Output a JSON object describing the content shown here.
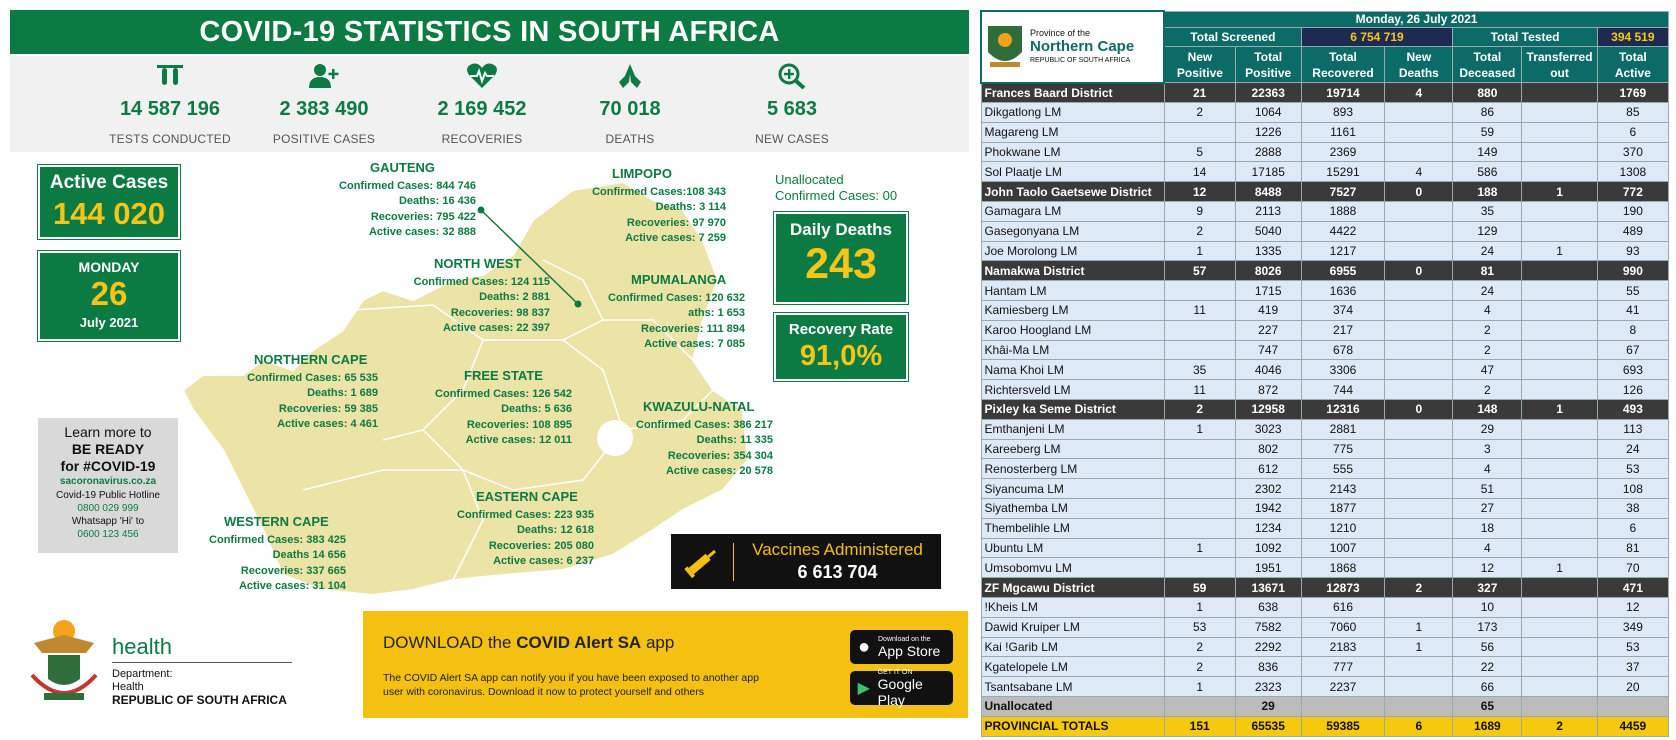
{
  "left": {
    "title": "COVID-19 STATISTICS IN SOUTH AFRICA",
    "stats": [
      {
        "icon": "test-tubes-icon",
        "value": "14 587 196",
        "label": "TESTS CONDUCTED"
      },
      {
        "icon": "add-user-icon",
        "value": "2 383 490",
        "label": "POSITIVE CASES"
      },
      {
        "icon": "heartbeat-icon",
        "value": "2 169 452",
        "label": "RECOVERIES"
      },
      {
        "icon": "praying-hands-icon",
        "value": "70 018",
        "label": "DEATHS"
      },
      {
        "icon": "magnify-plus-icon",
        "value": "5 683",
        "label": "NEW CASES"
      }
    ],
    "active_cases": {
      "label": "Active Cases",
      "value": "144 020"
    },
    "date": {
      "day": "MONDAY",
      "num": "26",
      "month": "July 2021"
    },
    "unallocated": {
      "line1": "Unallocated",
      "line2": "Confirmed Cases: 00"
    },
    "daily_deaths": {
      "label": "Daily Deaths",
      "value": "243"
    },
    "recovery_rate": {
      "label": "Recovery Rate",
      "value": "91,0%"
    },
    "provinces": {
      "gauteng": {
        "name": "GAUTENG",
        "lines": [
          "Confirmed Cases: 844 746",
          "Deaths: 16 436",
          "Recoveries: 795 422",
          "Active cases: 32 888"
        ]
      },
      "limpopo": {
        "name": "LIMPOPO",
        "lines": [
          "Confirmed Cases:108 343",
          "Deaths: 3 114",
          "Recoveries: 97 970",
          "Active cases: 7 259"
        ]
      },
      "northwest": {
        "name": "NORTH WEST",
        "lines": [
          "Confirmed Cases: 124 115",
          "Deaths: 2 881",
          "Recoveries: 98 837",
          "Active cases: 22 397"
        ]
      },
      "mpumalanga": {
        "name": "MPUMALANGA",
        "lines": [
          "Confirmed Cases: 120 632",
          "aths:  1 653",
          "Recoveries: 111 894",
          "Active cases: 7 085"
        ]
      },
      "northerncape": {
        "name": "NORTHERN CAPE",
        "lines": [
          "Confirmed Cases: 65 535",
          "Deaths: 1 689",
          "Recoveries: 59 385",
          "Active cases: 4 461"
        ]
      },
      "freestate": {
        "name": "FREE STATE",
        "lines": [
          "Confirmed Cases: 126 542",
          "Deaths: 5 636",
          "Recoveries:  108 895",
          "Active cases: 12 011"
        ]
      },
      "kzn": {
        "name": "KWAZULU-NATAL",
        "lines": [
          "Confirmed Cases: 386 217",
          "Deaths: 11 335",
          "Recoveries: 354 304",
          "Active cases: 20 578"
        ]
      },
      "westerncape": {
        "name": "WESTERN CAPE",
        "lines": [
          "Confirmed Cases: 383 425",
          "Deaths 14 656",
          "Recoveries: 337 665",
          "Active cases: 31 104"
        ]
      },
      "easterncape": {
        "name": "EASTERN CAPE",
        "lines": [
          "Confirmed Cases: 223 935",
          "Deaths: 12 618",
          "Recoveries: 205 080",
          "Active cases: 6 237"
        ]
      }
    },
    "learn": {
      "l1": "Learn more to",
      "l2": "BE READY",
      "l3": "for #COVID-19",
      "site": "sacoronavirus.co.za",
      "hotline": "Covid-19 Public Hotline",
      "hotline_num": "0800 029 999",
      "whatsapp": "Whatsapp 'Hi' to",
      "whatsapp_num": "0600 123 456"
    },
    "vaccines": {
      "label": "Vaccines Administered",
      "value": "6 613 704"
    },
    "health": {
      "brand": "health",
      "l1": "Department:",
      "l2": "Health",
      "l3": "REPUBLIC OF SOUTH AFRICA"
    },
    "alert": {
      "prefix": "DOWNLOAD the ",
      "bold": "COVID Alert SA",
      "suffix": " app",
      "body1": "The COVID Alert SA app can notify you if you have been exposed to another app",
      "body2": "user with coronavirus. Download it now to protect yourself and others",
      "appstore_small": "Download on the",
      "appstore": "App Store",
      "google_small": "GET IT ON",
      "google": "Google Play"
    }
  },
  "right": {
    "logo": {
      "l1": "Province of the",
      "l2": "Northern Cape",
      "l3": "REPUBLIC OF SOUTH AFRICA"
    },
    "date": "Monday, 26 July 2021",
    "screened_label": "Total Screened",
    "screened_value": "6 754 719",
    "tested_label": "Total Tested",
    "tested_value": "394 519",
    "headers": [
      [
        "New",
        "Positive"
      ],
      [
        "Total",
        "Positive"
      ],
      [
        "Total",
        "Recovered"
      ],
      [
        "New",
        "Deaths"
      ],
      [
        "Total",
        "Deceased"
      ],
      [
        "Transferred",
        "out"
      ],
      [
        "Total",
        "Active"
      ]
    ],
    "rows": [
      {
        "t": "dist",
        "c": [
          "Frances Baard District",
          "21",
          "22363",
          "19714",
          "4",
          "880",
          "",
          "1769"
        ]
      },
      {
        "t": "lm",
        "c": [
          "Dikgatlong LM",
          "2",
          "1064",
          "893",
          "",
          "86",
          "",
          "85"
        ]
      },
      {
        "t": "lm",
        "c": [
          "Magareng LM",
          "",
          "1226",
          "1161",
          "",
          "59",
          "",
          "6"
        ]
      },
      {
        "t": "lm",
        "c": [
          "Phokwane LM",
          "5",
          "2888",
          "2369",
          "",
          "149",
          "",
          "370"
        ]
      },
      {
        "t": "lm",
        "c": [
          "Sol Plaatje LM",
          "14",
          "17185",
          "15291",
          "4",
          "586",
          "",
          "1308"
        ]
      },
      {
        "t": "dist",
        "c": [
          "John Taolo Gaetsewe District",
          "12",
          "8488",
          "7527",
          "0",
          "188",
          "1",
          "772"
        ]
      },
      {
        "t": "lm",
        "c": [
          "Gamagara LM",
          "9",
          "2113",
          "1888",
          "",
          "35",
          "",
          "190"
        ]
      },
      {
        "t": "lm",
        "c": [
          "Gasegonyana LM",
          "2",
          "5040",
          "4422",
          "",
          "129",
          "",
          "489"
        ]
      },
      {
        "t": "lm",
        "c": [
          "Joe Morolong LM",
          "1",
          "1335",
          "1217",
          "",
          "24",
          "1",
          "93"
        ]
      },
      {
        "t": "dist",
        "c": [
          "Namakwa District",
          "57",
          "8026",
          "6955",
          "0",
          "81",
          "",
          "990"
        ]
      },
      {
        "t": "lm",
        "c": [
          "Hantam LM",
          "",
          "1715",
          "1636",
          "",
          "24",
          "",
          "55"
        ]
      },
      {
        "t": "lm",
        "c": [
          "Kamiesberg LM",
          "11",
          "419",
          "374",
          "",
          "4",
          "",
          "41"
        ]
      },
      {
        "t": "lm",
        "c": [
          "Karoo Hoogland LM",
          "",
          "227",
          "217",
          "",
          "2",
          "",
          "8"
        ]
      },
      {
        "t": "lm",
        "c": [
          "Khâi-Ma LM",
          "",
          "747",
          "678",
          "",
          "2",
          "",
          "67"
        ]
      },
      {
        "t": "lm",
        "c": [
          "Nama Khoi LM",
          "35",
          "4046",
          "3306",
          "",
          "47",
          "",
          "693"
        ]
      },
      {
        "t": "lm",
        "c": [
          "Richtersveld LM",
          "11",
          "872",
          "744",
          "",
          "2",
          "",
          "126"
        ]
      },
      {
        "t": "dist",
        "c": [
          "Pixley ka Seme District",
          "2",
          "12958",
          "12316",
          "0",
          "148",
          "1",
          "493"
        ]
      },
      {
        "t": "lm",
        "c": [
          "Emthanjeni LM",
          "1",
          "3023",
          "2881",
          "",
          "29",
          "",
          "113"
        ]
      },
      {
        "t": "lm",
        "c": [
          "Kareeberg LM",
          "",
          "802",
          "775",
          "",
          "3",
          "",
          "24"
        ]
      },
      {
        "t": "lm",
        "c": [
          "Renosterberg LM",
          "",
          "612",
          "555",
          "",
          "4",
          "",
          "53"
        ]
      },
      {
        "t": "lm",
        "c": [
          "Siyancuma LM",
          "",
          "2302",
          "2143",
          "",
          "51",
          "",
          "108"
        ]
      },
      {
        "t": "lm",
        "c": [
          "Siyathemba LM",
          "",
          "1942",
          "1877",
          "",
          "27",
          "",
          "38"
        ]
      },
      {
        "t": "lm",
        "c": [
          "Thembelihle LM",
          "",
          "1234",
          "1210",
          "",
          "18",
          "",
          "6"
        ]
      },
      {
        "t": "lm",
        "c": [
          "Ubuntu LM",
          "1",
          "1092",
          "1007",
          "",
          "4",
          "",
          "81"
        ]
      },
      {
        "t": "lm",
        "c": [
          "Umsobomvu LM",
          "",
          "1951",
          "1868",
          "",
          "12",
          "1",
          "70"
        ]
      },
      {
        "t": "dist",
        "c": [
          "ZF Mgcawu District",
          "59",
          "13671",
          "12873",
          "2",
          "327",
          "",
          "471"
        ]
      },
      {
        "t": "lm",
        "c": [
          "!Kheis LM",
          "1",
          "638",
          "616",
          "",
          "10",
          "",
          "12"
        ]
      },
      {
        "t": "lm",
        "c": [
          "Dawid Kruiper LM",
          "53",
          "7582",
          "7060",
          "1",
          "173",
          "",
          "349"
        ]
      },
      {
        "t": "lm",
        "c": [
          "Kai !Garib LM",
          "2",
          "2292",
          "2183",
          "1",
          "56",
          "",
          "53"
        ]
      },
      {
        "t": "lm",
        "c": [
          "Kgatelopele LM",
          "2",
          "836",
          "777",
          "",
          "22",
          "",
          "37"
        ]
      },
      {
        "t": "lm",
        "c": [
          "Tsantsabane LM",
          "1",
          "2323",
          "2237",
          "",
          "66",
          "",
          "20"
        ]
      },
      {
        "t": "unal",
        "c": [
          "Unallocated",
          "",
          "29",
          "",
          "",
          "65",
          "",
          ""
        ]
      },
      {
        "t": "tot",
        "c": [
          "PROVINCIAL TOTALS",
          "151",
          "65535",
          "59385",
          "6",
          "1689",
          "2",
          "4459"
        ]
      }
    ]
  }
}
